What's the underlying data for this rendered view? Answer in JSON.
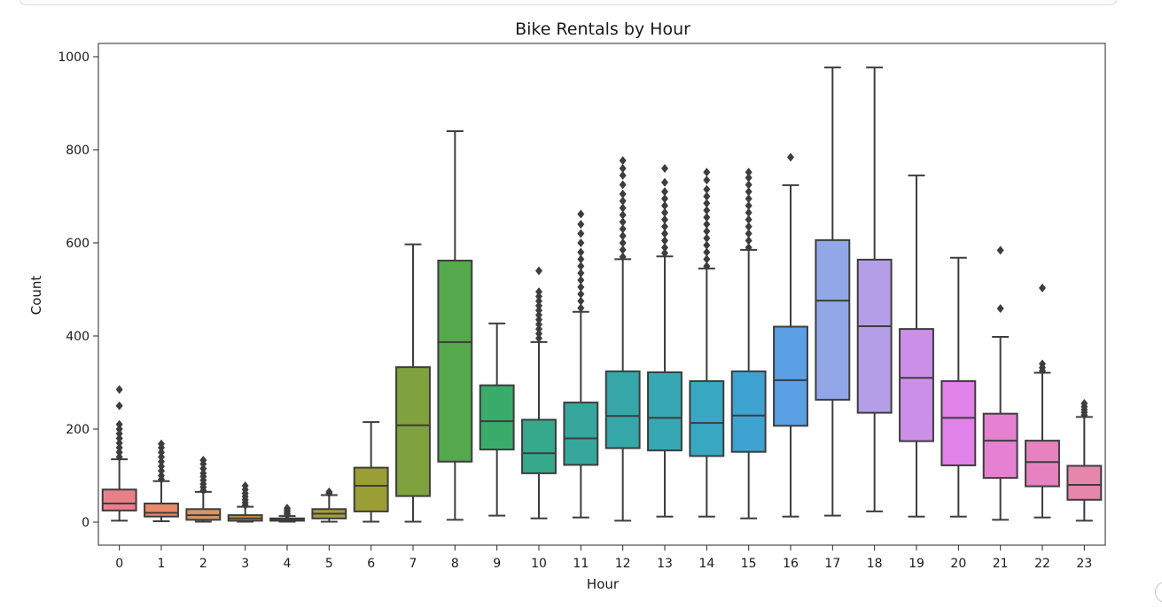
{
  "chart_data": {
    "type": "box",
    "title": "Bike Rentals by Hour",
    "xlabel": "Hour",
    "ylabel": "Count",
    "ylim": [
      -45,
      1030
    ],
    "yticks": [
      0,
      200,
      400,
      600,
      800,
      1000
    ],
    "categories": [
      "0",
      "1",
      "2",
      "3",
      "4",
      "5",
      "6",
      "7",
      "8",
      "9",
      "10",
      "11",
      "12",
      "13",
      "14",
      "15",
      "16",
      "17",
      "18",
      "19",
      "20",
      "21",
      "22",
      "23"
    ],
    "boxes": [
      {
        "whisker_low": 3,
        "q1": 25,
        "median": 40,
        "q3": 70,
        "whisker_high": 135,
        "outliers": [
          140,
          150,
          160,
          170,
          180,
          190,
          200,
          210,
          250,
          285
        ],
        "color": "#e8808a"
      },
      {
        "whisker_low": 2,
        "q1": 12,
        "median": 20,
        "q3": 40,
        "whisker_high": 88,
        "outliers": [
          92,
          100,
          110,
          120,
          130,
          140,
          150,
          160,
          168
        ],
        "color": "#e58a6b"
      },
      {
        "whisker_low": 1,
        "q1": 5,
        "median": 15,
        "q3": 28,
        "whisker_high": 65,
        "outliers": [
          68,
          75,
          82,
          90,
          98,
          105,
          115,
          125,
          133
        ],
        "color": "#d99563"
      },
      {
        "whisker_low": 1,
        "q1": 3,
        "median": 8,
        "q3": 15,
        "whisker_high": 33,
        "outliers": [
          36,
          42,
          48,
          55,
          62,
          70,
          78
        ],
        "color": "#c99640"
      },
      {
        "whisker_low": 1,
        "q1": 3,
        "median": 5,
        "q3": 8,
        "whisker_high": 13,
        "outliers": [
          15,
          18,
          22,
          26,
          30
        ],
        "color": "#b49a3c"
      },
      {
        "whisker_low": 1,
        "q1": 8,
        "median": 18,
        "q3": 28,
        "whisker_high": 58,
        "outliers": [
          62,
          65
        ],
        "color": "#a89d40"
      },
      {
        "whisker_low": 1,
        "q1": 23,
        "median": 78,
        "q3": 117,
        "whisker_high": 215,
        "outliers": [],
        "color": "#9b9d35"
      },
      {
        "whisker_low": 1,
        "q1": 56,
        "median": 208,
        "q3": 333,
        "whisker_high": 597,
        "outliers": [],
        "color": "#7fa23e"
      },
      {
        "whisker_low": 5,
        "q1": 130,
        "median": 387,
        "q3": 562,
        "whisker_high": 840,
        "outliers": [],
        "color": "#55a84c"
      },
      {
        "whisker_low": 14,
        "q1": 156,
        "median": 217,
        "q3": 294,
        "whisker_high": 427,
        "outliers": [],
        "color": "#3aab6a"
      },
      {
        "whisker_low": 8,
        "q1": 105,
        "median": 148,
        "q3": 220,
        "whisker_high": 387,
        "outliers": [
          395,
          405,
          415,
          425,
          435,
          445,
          455,
          465,
          475,
          485,
          495,
          540
        ],
        "color": "#36a98c"
      },
      {
        "whisker_low": 10,
        "q1": 123,
        "median": 180,
        "q3": 257,
        "whisker_high": 452,
        "outliers": [
          460,
          475,
          490,
          505,
          520,
          535,
          550,
          565,
          580,
          600,
          620,
          640,
          662
        ],
        "color": "#35a79c"
      },
      {
        "whisker_low": 3,
        "q1": 159,
        "median": 228,
        "q3": 324,
        "whisker_high": 565,
        "outliers": [
          570,
          585,
          600,
          615,
          630,
          645,
          660,
          675,
          690,
          705,
          725,
          745,
          760,
          777
        ],
        "color": "#36a6a9"
      },
      {
        "whisker_low": 12,
        "q1": 154,
        "median": 224,
        "q3": 322,
        "whisker_high": 571,
        "outliers": [
          578,
          590,
          605,
          620,
          635,
          650,
          665,
          680,
          695,
          710,
          730,
          760
        ],
        "color": "#37a7b3"
      },
      {
        "whisker_low": 12,
        "q1": 142,
        "median": 213,
        "q3": 303,
        "whisker_high": 545,
        "outliers": [
          550,
          565,
          580,
          595,
          610,
          625,
          640,
          655,
          670,
          685,
          700,
          715,
          735,
          752
        ],
        "color": "#38a8c2"
      },
      {
        "whisker_low": 8,
        "q1": 151,
        "median": 229,
        "q3": 324,
        "whisker_high": 585,
        "outliers": [
          590,
          605,
          620,
          635,
          650,
          665,
          680,
          695,
          710,
          725,
          740,
          752
        ],
        "color": "#3ea3d0"
      },
      {
        "whisker_low": 12,
        "q1": 207,
        "median": 305,
        "q3": 420,
        "whisker_high": 724,
        "outliers": [
          784
        ],
        "color": "#5b9fe4"
      },
      {
        "whisker_low": 14,
        "q1": 263,
        "median": 476,
        "q3": 606,
        "whisker_high": 977,
        "outliers": [],
        "color": "#92a7e8"
      },
      {
        "whisker_low": 23,
        "q1": 235,
        "median": 421,
        "q3": 564,
        "whisker_high": 977,
        "outliers": [],
        "color": "#b59ee8"
      },
      {
        "whisker_low": 12,
        "q1": 174,
        "median": 310,
        "q3": 415,
        "whisker_high": 745,
        "outliers": [],
        "color": "#cc8fe8"
      },
      {
        "whisker_low": 12,
        "q1": 122,
        "median": 224,
        "q3": 303,
        "whisker_high": 568,
        "outliers": [],
        "color": "#e082e8"
      },
      {
        "whisker_low": 5,
        "q1": 95,
        "median": 175,
        "q3": 233,
        "whisker_high": 398,
        "outliers": [
          459,
          584
        ],
        "color": "#e680d3"
      },
      {
        "whisker_low": 10,
        "q1": 77,
        "median": 129,
        "q3": 175,
        "whisker_high": 321,
        "outliers": [
          325,
          332,
          340,
          503
        ],
        "color": "#e682bf"
      },
      {
        "whisker_low": 3,
        "q1": 48,
        "median": 80,
        "q3": 121,
        "whisker_high": 226,
        "outliers": [
          230,
          236,
          242,
          248,
          255
        ],
        "color": "#e686aa"
      }
    ]
  }
}
